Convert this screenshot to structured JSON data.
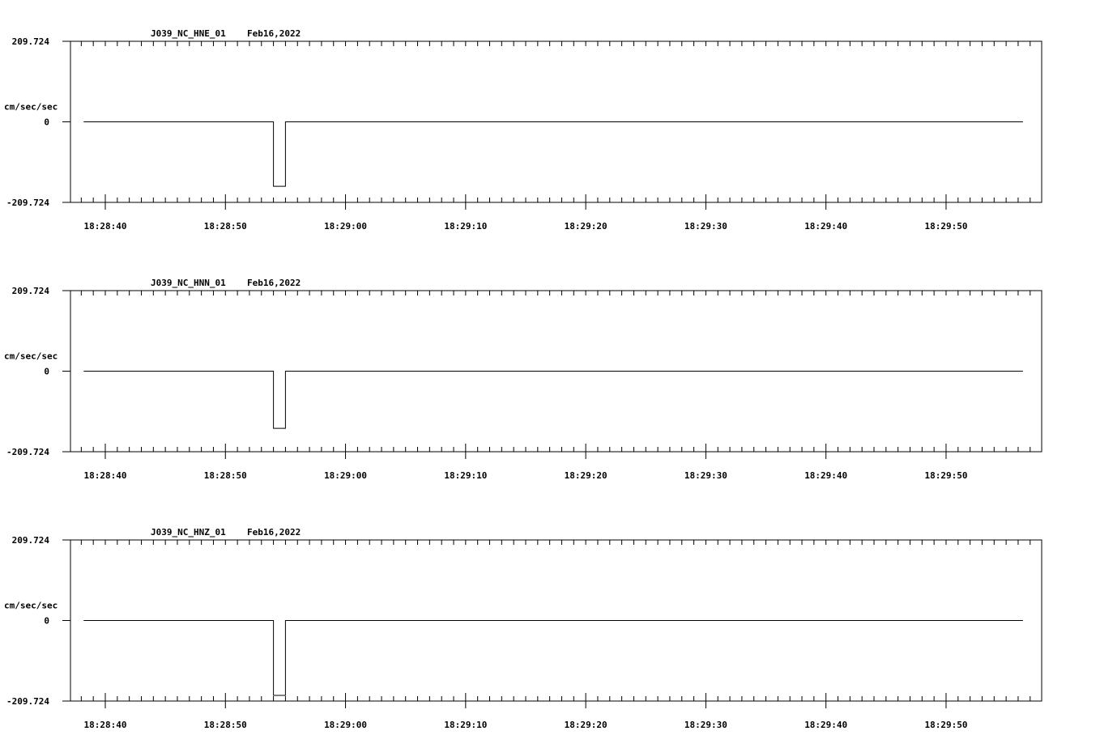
{
  "chart_data": [
    {
      "type": "line",
      "station": "J039_NC_HNE_01",
      "date": "Feb16,2022",
      "ylabel": "cm/sec/sec",
      "ylim": [
        -209.724,
        209.724
      ],
      "ytick_labels": [
        "209.724",
        "0",
        "-209.724"
      ],
      "xlim_seconds_after_18_28_00": [
        37.1,
        117.96
      ],
      "xticks_seconds": [
        40,
        50,
        60,
        70,
        80,
        90,
        100,
        110
      ],
      "xtick_labels": [
        "18:28:40",
        "18:28:50",
        "18:29:00",
        "18:29:10",
        "18:29:20",
        "18:29:30",
        "18:29:40",
        "18:29:50"
      ],
      "series": [
        {
          "name": "HNE",
          "points": [
            [
              38.2,
              0
            ],
            [
              54.0,
              0
            ],
            [
              54.0,
              -167.8
            ],
            [
              55.0,
              -167.8
            ],
            [
              55.0,
              0
            ],
            [
              116.4,
              0
            ]
          ]
        }
      ]
    },
    {
      "type": "line",
      "station": "J039_NC_HNN_01",
      "date": "Feb16,2022",
      "ylabel": "cm/sec/sec",
      "ylim": [
        -209.724,
        209.724
      ],
      "ytick_labels": [
        "209.724",
        "0",
        "-209.724"
      ],
      "xlim_seconds_after_18_28_00": [
        37.1,
        117.96
      ],
      "xticks_seconds": [
        40,
        50,
        60,
        70,
        80,
        90,
        100,
        110
      ],
      "xtick_labels": [
        "18:28:40",
        "18:28:50",
        "18:29:00",
        "18:29:10",
        "18:29:20",
        "18:29:30",
        "18:29:40",
        "18:29:50"
      ],
      "series": [
        {
          "name": "HNN",
          "points": [
            [
              38.2,
              0
            ],
            [
              54.0,
              0
            ],
            [
              54.0,
              -148.9
            ],
            [
              55.0,
              -148.9
            ],
            [
              55.0,
              0
            ],
            [
              116.4,
              0
            ]
          ]
        }
      ]
    },
    {
      "type": "line",
      "station": "J039_NC_HNZ_01",
      "date": "Feb16,2022",
      "ylabel": "cm/sec/sec",
      "ylim": [
        -209.724,
        209.724
      ],
      "ytick_labels": [
        "209.724",
        "0",
        "-209.724"
      ],
      "xlim_seconds_after_18_28_00": [
        37.1,
        117.96
      ],
      "xticks_seconds": [
        40,
        50,
        60,
        70,
        80,
        90,
        100,
        110
      ],
      "xtick_labels": [
        "18:28:40",
        "18:28:50",
        "18:29:00",
        "18:29:10",
        "18:29:20",
        "18:29:30",
        "18:29:40",
        "18:29:50"
      ],
      "series": [
        {
          "name": "HNZ",
          "points": [
            [
              38.2,
              0
            ],
            [
              54.0,
              0
            ],
            [
              54.0,
              -195.0
            ],
            [
              55.0,
              -195.0
            ],
            [
              55.0,
              0
            ],
            [
              116.4,
              0
            ]
          ]
        }
      ]
    }
  ]
}
